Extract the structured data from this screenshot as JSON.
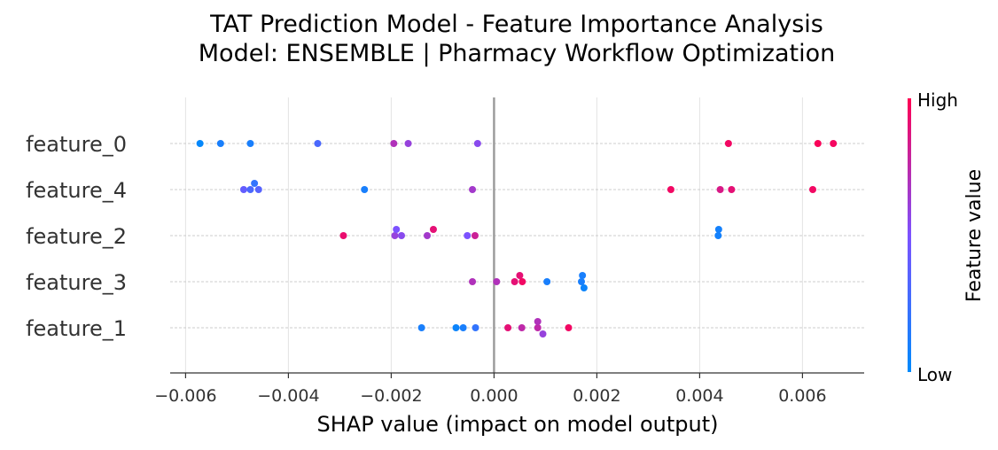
{
  "chart_data": {
    "type": "scatter",
    "title_line1": "TAT Prediction Model - Feature Importance Analysis",
    "title_line2": "Model: ENSEMBLE | Pharmacy Workflow Optimization",
    "xlabel": "SHAP value (impact on model output)",
    "xlim": [
      -0.0063,
      0.0072
    ],
    "xticks": [
      {
        "value": -0.006,
        "label": "−0.006"
      },
      {
        "value": -0.004,
        "label": "−0.004"
      },
      {
        "value": -0.002,
        "label": "−0.002"
      },
      {
        "value": 0.0,
        "label": "0.000"
      },
      {
        "value": 0.002,
        "label": "0.002"
      },
      {
        "value": 0.004,
        "label": "0.004"
      },
      {
        "value": 0.006,
        "label": "0.006"
      }
    ],
    "grid": true,
    "colorbar": {
      "title": "Feature value",
      "high_label": "High",
      "low_label": "Low",
      "low_color": "#008afb",
      "mid_color": "#7c52ff",
      "high_color": "#ff0052"
    },
    "features": [
      {
        "name": "feature_0",
        "points": [
          {
            "x": -0.00572,
            "v": 0.02
          },
          {
            "x": -0.00532,
            "v": 0.1
          },
          {
            "x": -0.00474,
            "v": 0.1
          },
          {
            "x": -0.00343,
            "v": 0.3
          },
          {
            "x": -0.00195,
            "v": 0.7
          },
          {
            "x": -0.00167,
            "v": 0.6
          },
          {
            "x": -0.00032,
            "v": 0.55
          },
          {
            "x": 0.00456,
            "v": 0.95
          },
          {
            "x": 0.0063,
            "v": 0.98
          },
          {
            "x": 0.0066,
            "v": 0.96
          }
        ]
      },
      {
        "name": "feature_4",
        "points": [
          {
            "x": -0.00487,
            "v": 0.4
          },
          {
            "x": -0.00474,
            "v": 0.3
          },
          {
            "x": -0.00466,
            "v": 0.2
          },
          {
            "x": -0.00458,
            "v": 0.35
          },
          {
            "x": -0.00252,
            "v": 0.1
          },
          {
            "x": -0.00042,
            "v": 0.65
          },
          {
            "x": 0.00344,
            "v": 0.95
          },
          {
            "x": 0.0044,
            "v": 0.85
          },
          {
            "x": 0.00462,
            "v": 0.9
          },
          {
            "x": 0.0062,
            "v": 0.95
          }
        ]
      },
      {
        "name": "feature_2",
        "points": [
          {
            "x": -0.00293,
            "v": 0.92
          },
          {
            "x": -0.00193,
            "v": 0.6
          },
          {
            "x": -0.0019,
            "v": 0.5
          },
          {
            "x": -0.0018,
            "v": 0.55
          },
          {
            "x": -0.0013,
            "v": 0.65
          },
          {
            "x": -0.00118,
            "v": 0.9
          },
          {
            "x": -0.00052,
            "v": 0.5
          },
          {
            "x": -0.00037,
            "v": 0.8
          },
          {
            "x": 0.00436,
            "v": 0.08
          },
          {
            "x": 0.00437,
            "v": 0.08
          }
        ]
      },
      {
        "name": "feature_3",
        "points": [
          {
            "x": -0.00042,
            "v": 0.7
          },
          {
            "x": 5e-05,
            "v": 0.7
          },
          {
            "x": 0.0004,
            "v": 0.9
          },
          {
            "x": 0.0005,
            "v": 0.9
          },
          {
            "x": 0.00055,
            "v": 0.95
          },
          {
            "x": 0.00103,
            "v": 0.1
          },
          {
            "x": 0.0017,
            "v": 0.1
          },
          {
            "x": 0.00172,
            "v": 0.1
          },
          {
            "x": 0.00175,
            "v": 0.05
          }
        ]
      },
      {
        "name": "feature_1",
        "points": [
          {
            "x": -0.00141,
            "v": 0.1
          },
          {
            "x": -0.00074,
            "v": 0.05
          },
          {
            "x": -0.0006,
            "v": 0.1
          },
          {
            "x": -0.00036,
            "v": 0.2
          },
          {
            "x": 0.00027,
            "v": 0.9
          },
          {
            "x": 0.00054,
            "v": 0.75
          },
          {
            "x": 0.00085,
            "v": 0.75
          },
          {
            "x": 0.00085,
            "v": 0.7
          },
          {
            "x": 0.00095,
            "v": 0.6
          },
          {
            "x": 0.00145,
            "v": 0.95
          }
        ]
      }
    ]
  }
}
